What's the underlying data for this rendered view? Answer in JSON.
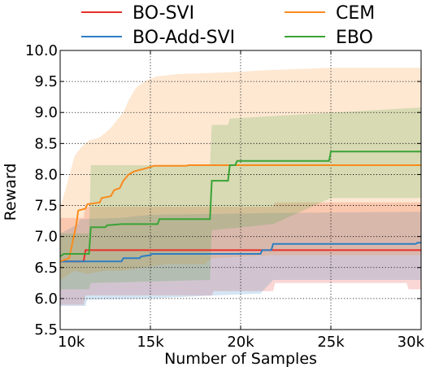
{
  "chart_data": {
    "type": "line",
    "title": "",
    "xlabel": "Number of Samples",
    "ylabel": "Reward",
    "xlim": [
      10000,
      30000
    ],
    "ylim": [
      5.5,
      10.0
    ],
    "x_ticks": [
      10000,
      15000,
      20000,
      25000,
      30000
    ],
    "x_tick_labels": [
      "10k",
      "15k",
      "20k",
      "25k",
      "30k"
    ],
    "y_ticks": [
      5.5,
      6.0,
      6.5,
      7.0,
      7.5,
      8.0,
      8.5,
      9.0,
      9.5,
      10.0
    ],
    "y_tick_labels": [
      "5.5",
      "6.0",
      "6.5",
      "7.0",
      "7.5",
      "8.0",
      "8.5",
      "9.0",
      "9.5",
      "10.0"
    ],
    "grid": true,
    "legend_position": "top, above plot (2 columns)",
    "series": [
      {
        "name": "BO-SVI",
        "color": "#e8302a",
        "mean": [
          [
            10000,
            6.6
          ],
          [
            11300,
            6.6
          ],
          [
            11400,
            6.78
          ],
          [
            30000,
            6.78
          ]
        ],
        "band_upper": [
          [
            10000,
            7.3
          ],
          [
            11300,
            7.3
          ],
          [
            11400,
            7.48
          ],
          [
            21800,
            7.48
          ],
          [
            21900,
            7.55
          ],
          [
            30000,
            7.55
          ]
        ],
        "band_lower": [
          [
            10000,
            5.9
          ],
          [
            11300,
            5.9
          ],
          [
            11400,
            6.05
          ],
          [
            18400,
            6.05
          ],
          [
            18500,
            6.12
          ],
          [
            21800,
            6.12
          ],
          [
            21900,
            6.25
          ],
          [
            29200,
            6.25
          ],
          [
            29300,
            6.15
          ],
          [
            30000,
            6.15
          ]
        ]
      },
      {
        "name": "BO-Add-SVI",
        "color": "#2d7ec3",
        "mean": [
          [
            10000,
            6.6
          ],
          [
            11500,
            6.6
          ],
          [
            11600,
            6.6
          ],
          [
            13400,
            6.6
          ],
          [
            13500,
            6.65
          ],
          [
            14400,
            6.65
          ],
          [
            14500,
            6.68
          ],
          [
            15000,
            6.7
          ],
          [
            15100,
            6.72
          ],
          [
            21100,
            6.72
          ],
          [
            21200,
            6.78
          ],
          [
            21700,
            6.78
          ],
          [
            21800,
            6.88
          ],
          [
            29700,
            6.88
          ],
          [
            29800,
            6.9
          ],
          [
            30000,
            6.9
          ]
        ],
        "band_upper": [
          [
            10000,
            7.05
          ],
          [
            11000,
            7.2
          ],
          [
            11100,
            7.28
          ],
          [
            13400,
            7.3
          ],
          [
            15000,
            7.35
          ],
          [
            21800,
            7.38
          ],
          [
            30000,
            7.4
          ]
        ],
        "band_lower": [
          [
            10000,
            5.88
          ],
          [
            11400,
            5.88
          ],
          [
            11500,
            5.98
          ],
          [
            15000,
            6.0
          ],
          [
            18500,
            6.05
          ],
          [
            21100,
            6.08
          ],
          [
            21800,
            6.3
          ],
          [
            30000,
            6.3
          ]
        ]
      },
      {
        "name": "CEM",
        "color": "#f98b1e",
        "mean": [
          [
            10000,
            6.6
          ],
          [
            10500,
            6.65
          ],
          [
            10900,
            7.2
          ],
          [
            11000,
            7.42
          ],
          [
            11400,
            7.45
          ],
          [
            11500,
            7.52
          ],
          [
            12200,
            7.55
          ],
          [
            12300,
            7.62
          ],
          [
            12800,
            7.65
          ],
          [
            13000,
            7.75
          ],
          [
            13300,
            7.78
          ],
          [
            13500,
            7.9
          ],
          [
            13800,
            8.0
          ],
          [
            14100,
            8.05
          ],
          [
            14500,
            8.08
          ],
          [
            15000,
            8.12
          ],
          [
            15200,
            8.14
          ],
          [
            17000,
            8.14
          ],
          [
            17100,
            8.15
          ],
          [
            30000,
            8.15
          ]
        ],
        "band_upper": [
          [
            10000,
            7.45
          ],
          [
            10800,
            8.3
          ],
          [
            11200,
            8.45
          ],
          [
            11600,
            8.55
          ],
          [
            12200,
            8.6
          ],
          [
            12800,
            8.75
          ],
          [
            13500,
            9.0
          ],
          [
            13800,
            9.2
          ],
          [
            14200,
            9.4
          ],
          [
            14700,
            9.5
          ],
          [
            15300,
            9.58
          ],
          [
            16500,
            9.62
          ],
          [
            19500,
            9.65
          ],
          [
            21300,
            9.68
          ],
          [
            25000,
            9.72
          ],
          [
            30000,
            9.72
          ]
        ],
        "band_lower": [
          [
            10000,
            6.3
          ],
          [
            10800,
            6.45
          ],
          [
            11500,
            6.4
          ],
          [
            12500,
            6.45
          ],
          [
            13500,
            6.45
          ],
          [
            14500,
            6.5
          ],
          [
            15800,
            6.55
          ],
          [
            18000,
            6.55
          ],
          [
            18400,
            6.65
          ],
          [
            21800,
            6.7
          ],
          [
            30000,
            6.7
          ]
        ]
      },
      {
        "name": "EBO",
        "color": "#3aa336",
        "mean": [
          [
            10000,
            6.68
          ],
          [
            10200,
            6.72
          ],
          [
            11600,
            6.72
          ],
          [
            11700,
            7.15
          ],
          [
            12500,
            7.15
          ],
          [
            12600,
            7.18
          ],
          [
            13400,
            7.2
          ],
          [
            15400,
            7.2
          ],
          [
            15500,
            7.28
          ],
          [
            18300,
            7.28
          ],
          [
            18400,
            7.9
          ],
          [
            19300,
            7.9
          ],
          [
            19400,
            8.15
          ],
          [
            19700,
            8.15
          ],
          [
            19800,
            8.22
          ],
          [
            24900,
            8.22
          ],
          [
            25000,
            8.37
          ],
          [
            30000,
            8.37
          ]
        ],
        "band_upper": [
          [
            10000,
            7.05
          ],
          [
            11600,
            7.05
          ],
          [
            11700,
            8.15
          ],
          [
            18300,
            8.15
          ],
          [
            18400,
            8.8
          ],
          [
            19300,
            8.8
          ],
          [
            19400,
            8.9
          ],
          [
            30000,
            9.08
          ]
        ],
        "band_lower": [
          [
            10000,
            6.15
          ],
          [
            11600,
            6.15
          ],
          [
            11700,
            6.25
          ],
          [
            18300,
            6.3
          ],
          [
            18400,
            7.1
          ],
          [
            21800,
            7.2
          ],
          [
            25000,
            7.62
          ],
          [
            30000,
            7.62
          ]
        ]
      }
    ]
  }
}
